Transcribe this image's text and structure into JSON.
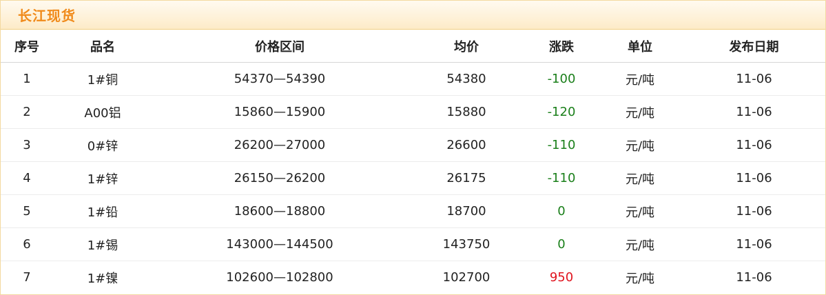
{
  "header": {
    "title": "长江现货"
  },
  "table": {
    "columns": [
      "序号",
      "品名",
      "价格区间",
      "均价",
      "涨跌",
      "单位",
      "发布日期"
    ],
    "rows": [
      {
        "no": "1",
        "name": "1#铜",
        "range": "54370—54390",
        "avg": "54380",
        "change": "-100",
        "unit": "元/吨",
        "date": "11-06"
      },
      {
        "no": "2",
        "name": "A00铝",
        "range": "15860—15900",
        "avg": "15880",
        "change": "-120",
        "unit": "元/吨",
        "date": "11-06"
      },
      {
        "no": "3",
        "name": "0#锌",
        "range": "26200—27000",
        "avg": "26600",
        "change": "-110",
        "unit": "元/吨",
        "date": "11-06"
      },
      {
        "no": "4",
        "name": "1#锌",
        "range": "26150—26200",
        "avg": "26175",
        "change": "-110",
        "unit": "元/吨",
        "date": "11-06"
      },
      {
        "no": "5",
        "name": "1#铅",
        "range": "18600—18800",
        "avg": "18700",
        "change": "0",
        "unit": "元/吨",
        "date": "11-06"
      },
      {
        "no": "6",
        "name": "1#锡",
        "range": "143000—144500",
        "avg": "143750",
        "change": "0",
        "unit": "元/吨",
        "date": "11-06"
      },
      {
        "no": "7",
        "name": "1#镍",
        "range": "102600—102800",
        "avg": "102700",
        "change": "950",
        "unit": "元/吨",
        "date": "11-06"
      }
    ]
  },
  "colors": {
    "title": "#f08a1a",
    "down": "#1a7f1a",
    "flat": "#1a7f1a",
    "up": "#e0141e"
  }
}
